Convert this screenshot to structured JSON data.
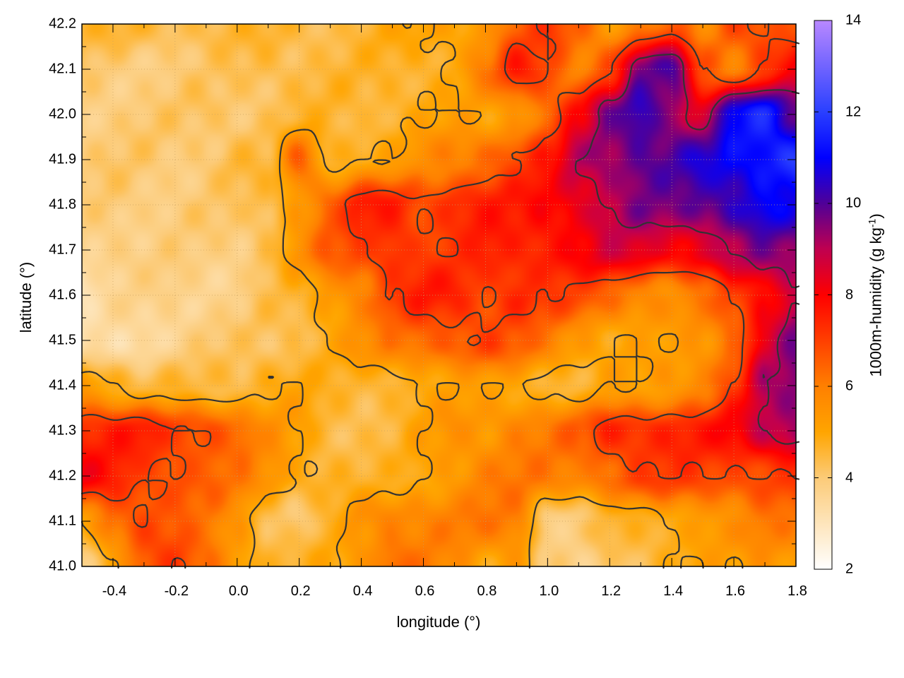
{
  "chart_data": {
    "type": "heatmap",
    "title": "",
    "xlabel": "longitude (°)",
    "ylabel": "latitude (°)",
    "colorbar_label": "1000m-humidity (g kg",
    "colorbar_label_sup": "-1",
    "colorbar_label_end": ")",
    "xlim": [
      -0.5,
      1.8
    ],
    "ylim": [
      41.0,
      42.2
    ],
    "clim": [
      2,
      14
    ],
    "x_ticks": [
      "-0.4",
      "-0.2",
      "0.0",
      "0.2",
      "0.4",
      "0.6",
      "0.8",
      "1.0",
      "1.2",
      "1.4",
      "1.6",
      "1.8"
    ],
    "y_ticks": [
      "41.0",
      "41.1",
      "41.2",
      "41.3",
      "41.4",
      "41.5",
      "41.6",
      "41.7",
      "41.8",
      "41.9",
      "42.0",
      "42.1",
      "42.2"
    ],
    "colorbar_ticks": [
      "2",
      "4",
      "6",
      "8",
      "10",
      "12",
      "14"
    ],
    "grid": true,
    "contour_levels": [
      5,
      7,
      9
    ],
    "palette": [
      [
        2,
        "#ffffff"
      ],
      [
        4,
        "#fccb78"
      ],
      [
        5,
        "#ffa500"
      ],
      [
        6,
        "#ff8000"
      ],
      [
        7,
        "#ff4000"
      ],
      [
        8,
        "#ff0000"
      ],
      [
        9,
        "#c00050"
      ],
      [
        10,
        "#500098"
      ],
      [
        11,
        "#0000ff"
      ],
      [
        12,
        "#2a40ff"
      ],
      [
        14,
        "#b888ff"
      ]
    ],
    "grid_x": [
      -0.5,
      -0.4,
      -0.3,
      -0.2,
      -0.1,
      0.0,
      0.1,
      0.2,
      0.3,
      0.4,
      0.5,
      0.6,
      0.7,
      0.8,
      0.9,
      1.0,
      1.1,
      1.2,
      1.3,
      1.4,
      1.5,
      1.6,
      1.7,
      1.8
    ],
    "grid_y": [
      42.2,
      42.1,
      42.0,
      41.9,
      41.8,
      41.7,
      41.6,
      41.5,
      41.4,
      41.3,
      41.2,
      41.1,
      41.0
    ],
    "values": [
      [
        4.5,
        4.5,
        4.5,
        4.5,
        4.5,
        4.5,
        4.5,
        4.5,
        4.5,
        4.6,
        4.8,
        5,
        5.2,
        5.5,
        6.5,
        7,
        6.5,
        5.5,
        6,
        6.5,
        5.5,
        7,
        7,
        6.5
      ],
      [
        4,
        4,
        4,
        4,
        4,
        4.2,
        4.5,
        4.5,
        4.5,
        4.5,
        4.6,
        4.8,
        5,
        6,
        7.5,
        7,
        6,
        7,
        9.5,
        10,
        7,
        6,
        7,
        8
      ],
      [
        4,
        4,
        4,
        4,
        4.2,
        4.2,
        4.3,
        4.5,
        4.5,
        4.5,
        4.8,
        5,
        5,
        5,
        5.5,
        6.5,
        8,
        9.5,
        10.5,
        9.5,
        8.5,
        11,
        11.5,
        10
      ],
      [
        4,
        4,
        4,
        4,
        4.2,
        4.5,
        4.3,
        6.5,
        4.8,
        5,
        5,
        5.5,
        6,
        6.5,
        7,
        7.5,
        9,
        9.5,
        10,
        10,
        10.5,
        11,
        11.5,
        12
      ],
      [
        3.8,
        4,
        4,
        4,
        4,
        4,
        4.5,
        5.5,
        6.5,
        7.5,
        7.5,
        7,
        7.5,
        7.5,
        7.5,
        8,
        8.5,
        9,
        9.5,
        9.5,
        10,
        10.5,
        11,
        10.5
      ],
      [
        3.8,
        4,
        3.8,
        3.8,
        3.8,
        4,
        4.5,
        5.5,
        6.5,
        7,
        7.5,
        7,
        7,
        7.5,
        7.5,
        7.8,
        8,
        8.5,
        8.5,
        8.2,
        8.5,
        9,
        9.5,
        9.5
      ],
      [
        3.2,
        3.5,
        3.6,
        3.8,
        3.8,
        3.8,
        4.2,
        4.5,
        5.5,
        6,
        7,
        7.5,
        7.5,
        7,
        7.5,
        7,
        6.8,
        6.5,
        6,
        5.5,
        6,
        7,
        8,
        9
      ],
      [
        3,
        3.2,
        3.5,
        3.8,
        4,
        4,
        4.2,
        4.5,
        5,
        5.5,
        6,
        6.5,
        6.8,
        7,
        6.5,
        6,
        5.5,
        5,
        5,
        5,
        5.5,
        6.5,
        8.5,
        9.5
      ],
      [
        5.5,
        5,
        4.5,
        4.5,
        4.3,
        4.5,
        5,
        5,
        4.5,
        4.5,
        4.8,
        5,
        5,
        5,
        5,
        4.8,
        4.5,
        5,
        5,
        5.5,
        6,
        7,
        9,
        9.5
      ],
      [
        7.5,
        7.5,
        7.5,
        7,
        7,
        6.5,
        5.5,
        5,
        4.5,
        4.5,
        4.5,
        5,
        5.5,
        5.5,
        6,
        6,
        6.5,
        7.5,
        7.5,
        7.5,
        7.5,
        8,
        9,
        9.5
      ],
      [
        8,
        7.5,
        7,
        7,
        6.5,
        6,
        5.5,
        5,
        4.8,
        4.5,
        4.5,
        5,
        5.5,
        6,
        6,
        6,
        6,
        6.5,
        7,
        7,
        7,
        7,
        7,
        7
      ],
      [
        5,
        6.5,
        7,
        6.5,
        6,
        5.5,
        4.5,
        4,
        4.5,
        5.5,
        6,
        6,
        6,
        6,
        6,
        4,
        4,
        4.5,
        4.5,
        5,
        5.5,
        5.5,
        6,
        6
      ],
      [
        4,
        5,
        6.5,
        7,
        6.5,
        5.5,
        4.5,
        4.5,
        5,
        5.5,
        6.5,
        6,
        5.5,
        5,
        5.5,
        4,
        3.5,
        4,
        4.5,
        5,
        5,
        5,
        5.5,
        5.5
      ]
    ]
  }
}
